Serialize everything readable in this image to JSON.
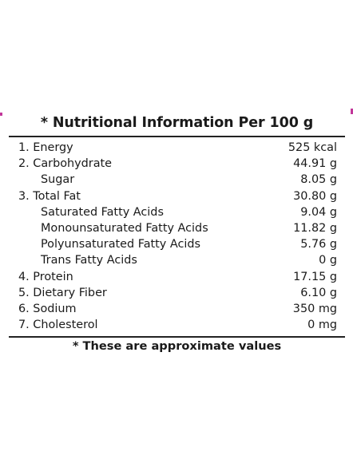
{
  "title": "* Nutritional Information Per 100 g",
  "rows": [
    {
      "label": "1. Energy",
      "value": "525 kcal"
    },
    {
      "label": "2. Carbohydrate",
      "value": "44.91 g"
    },
    {
      "label": "Sugar",
      "value": "8.05 g"
    },
    {
      "label": "3. Total Fat",
      "value": "30.80 g"
    },
    {
      "label": "Saturated Fatty Acids",
      "value": "9.04 g"
    },
    {
      "label": "Monounsaturated Fatty Acids",
      "value": "11.82 g"
    },
    {
      "label": "Polyunsaturated Fatty Acids",
      "value": "5.76 g"
    },
    {
      "label": "Trans Fatty Acids",
      "value": "0 g"
    },
    {
      "label": "4. Protein",
      "value": "17.15 g"
    },
    {
      "label": "5. Dietary Fiber",
      "value": "6.10 g"
    },
    {
      "label": "6. Sodium",
      "value": "350 mg"
    },
    {
      "label": "7. Cholesterol",
      "value": "0 mg"
    }
  ],
  "footnote": "* These are approximate values",
  "colors": {
    "text": "#1a1a1a",
    "rule": "#222222",
    "accent": "#c2379a"
  }
}
